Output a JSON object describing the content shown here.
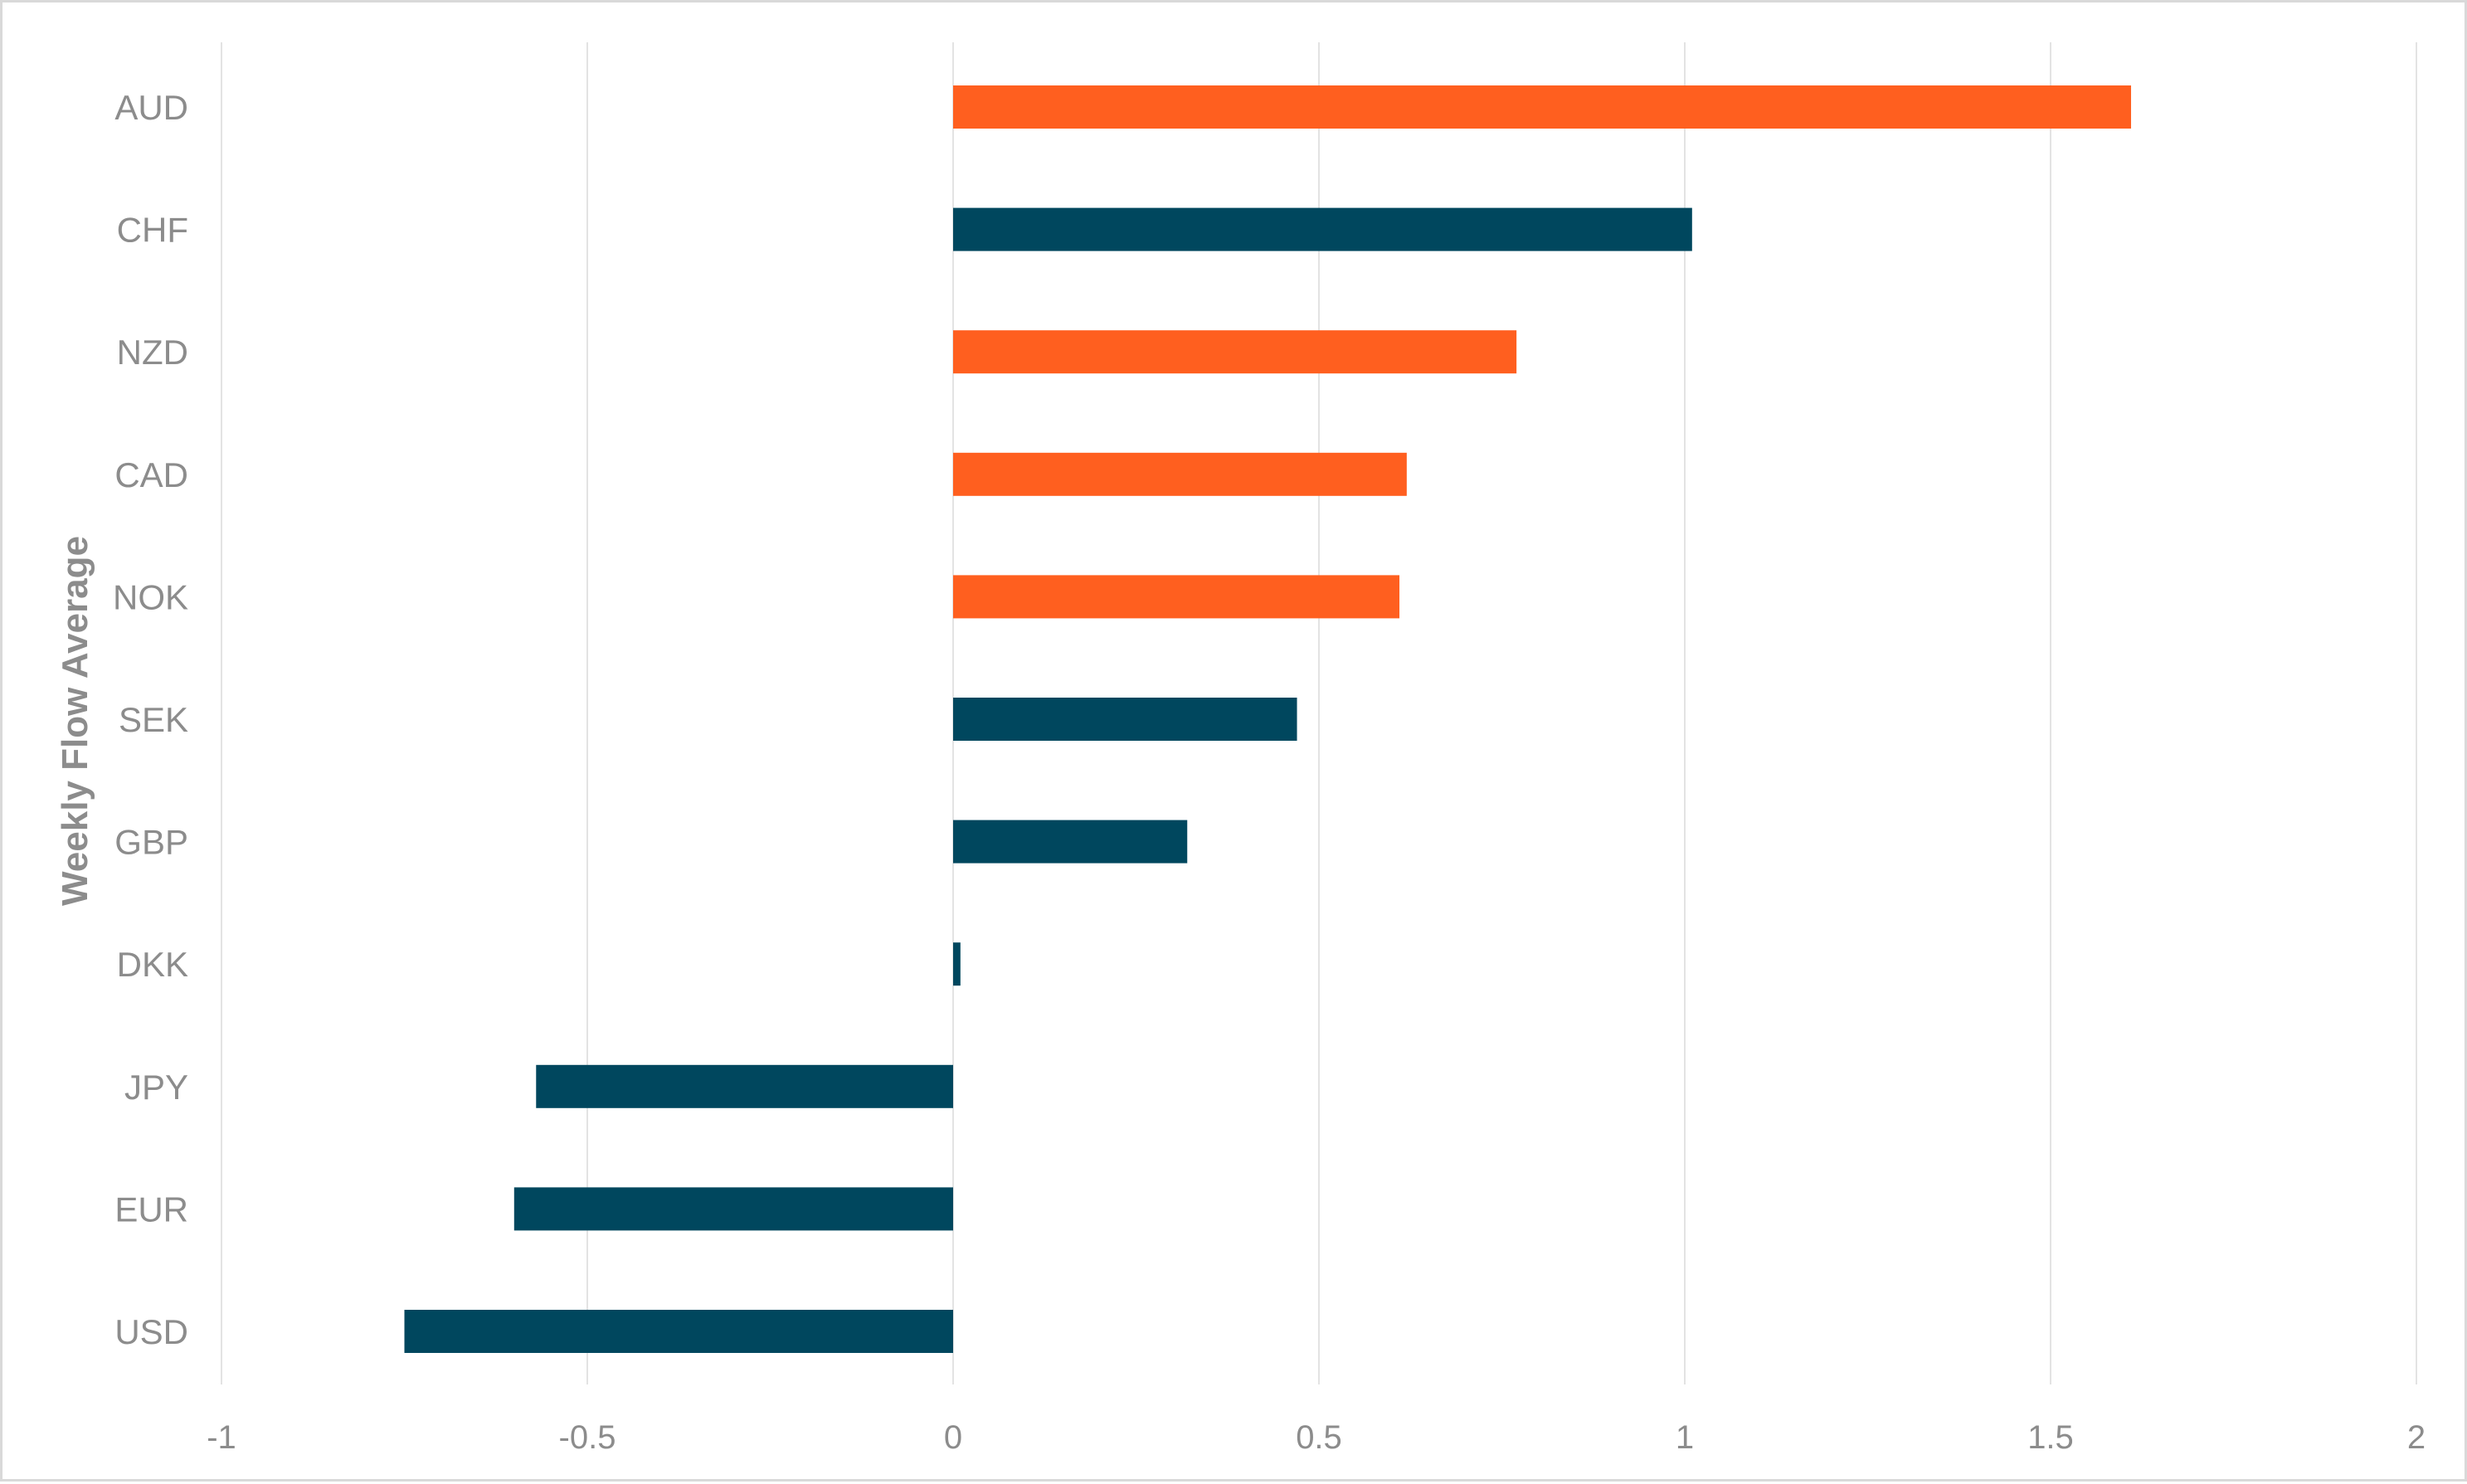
{
  "chart_data": {
    "type": "bar",
    "orientation": "horizontal",
    "title": "",
    "xlabel": "",
    "ylabel": "Weekly Flow Average",
    "xlim": [
      -1,
      2
    ],
    "x_ticks": [
      -1,
      -0.5,
      0,
      0.5,
      1,
      1.5,
      2
    ],
    "x_tick_labels": [
      "-1",
      "-0.5",
      "0",
      "0.5",
      "1",
      "1.5",
      "2"
    ],
    "grid": "vertical",
    "legend": "none",
    "categories": [
      "AUD",
      "CHF",
      "NZD",
      "CAD",
      "NOK",
      "SEK",
      "GBP",
      "DKK",
      "JPY",
      "EUR",
      "USD"
    ],
    "values": [
      1.61,
      1.01,
      0.77,
      0.62,
      0.61,
      0.47,
      0.32,
      0.01,
      -0.57,
      -0.6,
      -0.75
    ],
    "bar_colors": [
      "#ff5f1f",
      "#00475e",
      "#ff5f1f",
      "#ff5f1f",
      "#ff5f1f",
      "#00475e",
      "#00475e",
      "#00475e",
      "#00475e",
      "#00475e",
      "#00475e"
    ],
    "colors": {
      "orange": "#ff5f1f",
      "teal": "#00475e",
      "grid": "#e3e3e3",
      "text": "#8c8c8c"
    }
  }
}
